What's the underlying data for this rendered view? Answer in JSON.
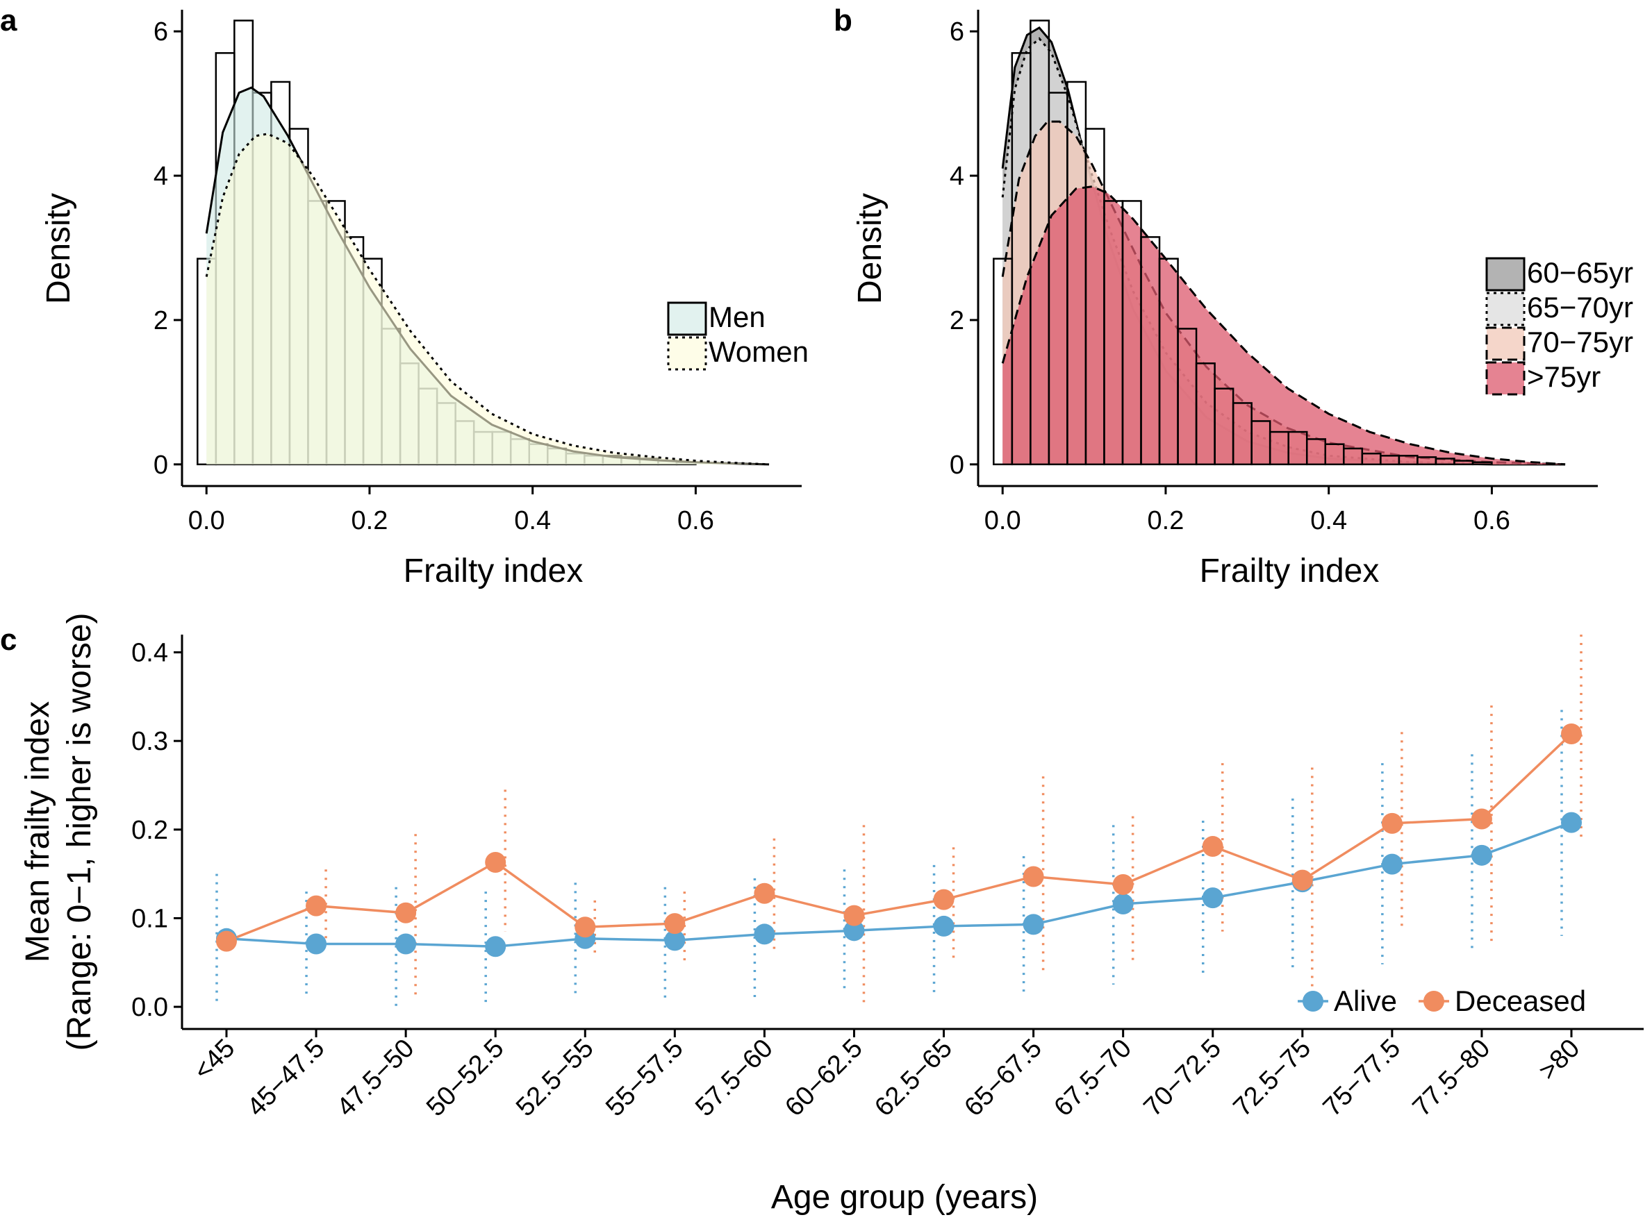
{
  "chart_data": [
    {
      "panel": "a",
      "type": "histogram-density",
      "xlabel": "Frailty index",
      "ylabel": "Density",
      "xlim": [
        -0.03,
        0.73
      ],
      "ylim": [
        -0.3,
        6.3
      ],
      "xticks": [
        "0.0",
        "0.2",
        "0.4",
        "0.6"
      ],
      "yticks": [
        "0",
        "2",
        "4",
        "6"
      ],
      "histogram": {
        "bin_edges": [
          -0.011,
          0.0116,
          0.0342,
          0.0568,
          0.0794,
          0.102,
          0.1246,
          0.1472,
          0.1698,
          0.1924,
          0.215,
          0.2376,
          0.2602,
          0.2828,
          0.3054,
          0.328,
          0.3506,
          0.3732,
          0.3958,
          0.4184,
          0.441,
          0.4636,
          0.4862,
          0.5088,
          0.5314,
          0.554,
          0.5766,
          0.6
        ],
        "density": [
          2.85,
          5.7,
          6.15,
          5.15,
          5.3,
          4.65,
          3.65,
          3.65,
          3.15,
          2.85,
          1.88,
          1.4,
          1.05,
          0.85,
          0.6,
          0.45,
          0.45,
          0.35,
          0.28,
          0.22,
          0.15,
          0.12,
          0.12,
          0.1,
          0.08,
          0.05,
          0.03
        ]
      },
      "series": [
        {
          "name": "Men",
          "fill": "#cfe9e4",
          "dash": "solid",
          "x": [
            0.0,
            0.02,
            0.04,
            0.055,
            0.07,
            0.1,
            0.13,
            0.16,
            0.2,
            0.25,
            0.3,
            0.35,
            0.4,
            0.45,
            0.5,
            0.55,
            0.6,
            0.65,
            0.69
          ],
          "y": [
            3.2,
            4.6,
            5.15,
            5.22,
            5.1,
            4.55,
            3.9,
            3.25,
            2.45,
            1.6,
            0.95,
            0.55,
            0.32,
            0.18,
            0.1,
            0.06,
            0.03,
            0.01,
            0.0
          ]
        },
        {
          "name": "Women",
          "fill": "#fdfbd8",
          "dash": "dotted",
          "x": [
            0.0,
            0.02,
            0.04,
            0.06,
            0.075,
            0.1,
            0.13,
            0.16,
            0.2,
            0.25,
            0.3,
            0.35,
            0.4,
            0.45,
            0.5,
            0.55,
            0.6,
            0.65,
            0.69
          ],
          "y": [
            2.6,
            3.7,
            4.3,
            4.55,
            4.58,
            4.45,
            4.0,
            3.45,
            2.7,
            1.85,
            1.15,
            0.7,
            0.42,
            0.26,
            0.16,
            0.1,
            0.05,
            0.02,
            0.0
          ]
        }
      ],
      "legend": [
        "Men",
        "Women"
      ],
      "legend_position": "right"
    },
    {
      "panel": "b",
      "type": "histogram-density",
      "xlabel": "Frailty index",
      "ylabel": "Density",
      "xlim": [
        -0.03,
        0.73
      ],
      "ylim": [
        -0.3,
        6.3
      ],
      "xticks": [
        "0.0",
        "0.2",
        "0.4",
        "0.6"
      ],
      "yticks": [
        "0",
        "2",
        "4",
        "6"
      ],
      "histogram": {
        "bin_edges": [
          -0.011,
          0.0116,
          0.0342,
          0.0568,
          0.0794,
          0.102,
          0.1246,
          0.1472,
          0.1698,
          0.1924,
          0.215,
          0.2376,
          0.2602,
          0.2828,
          0.3054,
          0.328,
          0.3506,
          0.3732,
          0.3958,
          0.4184,
          0.441,
          0.4636,
          0.4862,
          0.5088,
          0.5314,
          0.554,
          0.5766,
          0.6
        ],
        "density": [
          2.85,
          5.7,
          6.15,
          5.15,
          5.3,
          4.65,
          3.65,
          3.65,
          3.15,
          2.85,
          1.88,
          1.4,
          1.05,
          0.85,
          0.6,
          0.45,
          0.45,
          0.35,
          0.28,
          0.22,
          0.15,
          0.12,
          0.12,
          0.1,
          0.08,
          0.05,
          0.03
        ]
      },
      "series": [
        {
          "name": "60−65yr",
          "fill": "#9a9a9a",
          "dash": "solid",
          "x": [
            0.0,
            0.015,
            0.03,
            0.045,
            0.06,
            0.08,
            0.1,
            0.13,
            0.16,
            0.2,
            0.25,
            0.3,
            0.35,
            0.4,
            0.5,
            0.6,
            0.69
          ],
          "y": [
            4.1,
            5.5,
            5.95,
            6.05,
            5.85,
            5.2,
            4.3,
            3.1,
            2.15,
            1.3,
            0.65,
            0.32,
            0.16,
            0.08,
            0.02,
            0.0,
            0.0
          ]
        },
        {
          "name": "65−70yr",
          "fill": "#dcdcdc",
          "dash": "dotted",
          "x": [
            0.0,
            0.015,
            0.03,
            0.045,
            0.06,
            0.08,
            0.1,
            0.13,
            0.16,
            0.2,
            0.25,
            0.3,
            0.35,
            0.4,
            0.5,
            0.6,
            0.69
          ],
          "y": [
            3.7,
            5.2,
            5.75,
            5.9,
            5.7,
            5.1,
            4.35,
            3.3,
            2.4,
            1.55,
            0.85,
            0.45,
            0.24,
            0.12,
            0.03,
            0.01,
            0.0
          ]
        },
        {
          "name": "70−75yr",
          "fill": "#f2c8b8",
          "dash": "dashed",
          "x": [
            0.0,
            0.02,
            0.04,
            0.055,
            0.07,
            0.09,
            0.11,
            0.14,
            0.17,
            0.2,
            0.25,
            0.3,
            0.35,
            0.4,
            0.5,
            0.6,
            0.69
          ],
          "y": [
            2.6,
            3.95,
            4.55,
            4.75,
            4.75,
            4.55,
            4.15,
            3.45,
            2.75,
            2.1,
            1.35,
            0.82,
            0.5,
            0.3,
            0.1,
            0.03,
            0.0
          ]
        },
        {
          "name": ">75yr",
          "fill": "#dc5a6e",
          "dash": "dashed",
          "x": [
            0.0,
            0.03,
            0.06,
            0.09,
            0.11,
            0.13,
            0.16,
            0.2,
            0.25,
            0.3,
            0.35,
            0.4,
            0.45,
            0.5,
            0.55,
            0.6,
            0.65,
            0.69
          ],
          "y": [
            1.4,
            2.6,
            3.45,
            3.82,
            3.85,
            3.75,
            3.4,
            2.85,
            2.15,
            1.55,
            1.05,
            0.7,
            0.45,
            0.28,
            0.16,
            0.08,
            0.03,
            0.0
          ]
        }
      ],
      "legend": [
        "60−65yr",
        "65−70yr",
        "70−75yr",
        ">75yr"
      ],
      "legend_position": "right"
    },
    {
      "panel": "c",
      "type": "line",
      "xlabel": "Age group (years)",
      "ylabel": [
        "Mean frailty index",
        "(Range: 0−1, higher is worse)"
      ],
      "ylim": [
        -0.025,
        0.42
      ],
      "yticks": [
        "0.0",
        "0.1",
        "0.2",
        "0.3",
        "0.4"
      ],
      "categories": [
        "<45",
        "45−47.5",
        "47.5−50",
        "50−52.5",
        "52.5−55",
        "55−57.5",
        "57.5−60",
        "60−62.5",
        "62.5−65",
        "65−67.5",
        "67.5−70",
        "70−72.5",
        "72.5−75",
        "75−77.5",
        "77.5−80",
        ">80"
      ],
      "series": [
        {
          "name": "Alive",
          "color": "#5aa5d2",
          "values": [
            0.077,
            0.071,
            0.071,
            0.068,
            0.077,
            0.075,
            0.082,
            0.086,
            0.091,
            0.093,
            0.116,
            0.123,
            0.141,
            0.161,
            0.171,
            0.208
          ],
          "sd_low": [
            0.0,
            0.01,
            0.0,
            0.005,
            0.01,
            0.01,
            0.01,
            0.015,
            0.01,
            0.015,
            0.025,
            0.035,
            0.04,
            0.048,
            0.06,
            0.08
          ],
          "sd_high": [
            0.15,
            0.13,
            0.135,
            0.13,
            0.14,
            0.135,
            0.145,
            0.155,
            0.16,
            0.17,
            0.205,
            0.21,
            0.235,
            0.275,
            0.285,
            0.335
          ]
        },
        {
          "name": "Deceased",
          "color": "#f08c5f",
          "values": [
            0.074,
            0.114,
            0.106,
            0.163,
            0.09,
            0.094,
            0.128,
            0.103,
            0.121,
            0.147,
            0.138,
            0.181,
            0.143,
            0.207,
            0.212,
            0.308
          ],
          "sd_low": [
            0.074,
            0.075,
            0.01,
            0.085,
            0.06,
            0.05,
            0.065,
            0.0,
            0.055,
            0.035,
            0.05,
            0.085,
            0.005,
            0.09,
            0.07,
            0.19
          ],
          "sd_high": [
            0.074,
            0.155,
            0.195,
            0.245,
            0.12,
            0.13,
            0.19,
            0.205,
            0.18,
            0.26,
            0.215,
            0.275,
            0.27,
            0.31,
            0.34,
            0.42
          ]
        }
      ],
      "legend": [
        "Alive",
        "Deceased"
      ],
      "legend_position": "bottom-right"
    }
  ],
  "figure": {
    "panel_labels": [
      "a",
      "b",
      "c"
    ]
  }
}
